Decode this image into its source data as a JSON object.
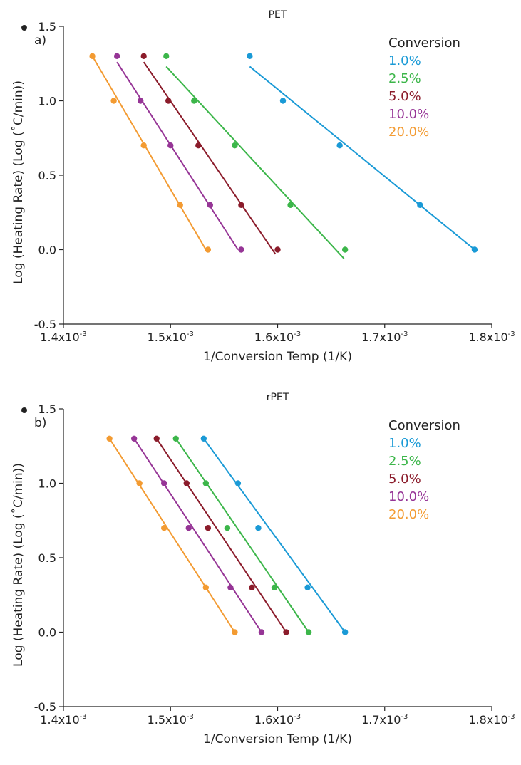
{
  "chart_data": [
    {
      "type": "scatter",
      "panel_label": "a)",
      "title": "PET",
      "xlabel": "1/Conversion Temp (1/K)",
      "ylabel": "Log (Heating Rate)  (Log (˚C/min))",
      "xlim": [
        0.0014,
        0.0018
      ],
      "ylim": [
        -0.5,
        1.5
      ],
      "x_ticks": [
        {
          "value": 0.0014,
          "mantissa": "1.4x10",
          "exp": "-3"
        },
        {
          "value": 0.0015,
          "mantissa": "1.5x10",
          "exp": "-3"
        },
        {
          "value": 0.0016,
          "mantissa": "1.6x10",
          "exp": "-3"
        },
        {
          "value": 0.0017,
          "mantissa": "1.7x10",
          "exp": "-3"
        },
        {
          "value": 0.0018,
          "mantissa": "1.8x10",
          "exp": "-3"
        }
      ],
      "y_ticks": [
        {
          "value": -0.5,
          "label": "-0.5"
        },
        {
          "value": 0.0,
          "label": "0.0"
        },
        {
          "value": 0.5,
          "label": "0.5"
        },
        {
          "value": 1.0,
          "label": "1.0"
        },
        {
          "value": 1.5,
          "label": "1.5"
        }
      ],
      "grid": false,
      "legend": {
        "title": "Conversion",
        "position": "top-right"
      },
      "series": [
        {
          "name": "1.0%",
          "color": "#1a9ad6",
          "points": [
            [
              0.001574,
              1.3
            ],
            [
              0.001605,
              1.0
            ],
            [
              0.001658,
              0.7
            ],
            [
              0.001733,
              0.3
            ],
            [
              0.001784,
              0.0
            ]
          ],
          "fit": [
            [
              0.001574,
              1.23
            ],
            [
              0.001784,
              0.0
            ]
          ]
        },
        {
          "name": "2.5%",
          "color": "#3cb64a",
          "points": [
            [
              0.001496,
              1.3
            ],
            [
              0.001522,
              1.0
            ],
            [
              0.00156,
              0.7
            ],
            [
              0.001612,
              0.3
            ],
            [
              0.001663,
              0.0
            ]
          ],
          "fit": [
            [
              0.001496,
              1.23
            ],
            [
              0.001662,
              -0.06
            ]
          ]
        },
        {
          "name": "5.0%",
          "color": "#8b1c2b",
          "points": [
            [
              0.001475,
              1.3
            ],
            [
              0.001498,
              1.0
            ],
            [
              0.001526,
              0.7
            ],
            [
              0.001566,
              0.3
            ],
            [
              0.0016,
              0.0
            ]
          ],
          "fit": [
            [
              0.001475,
              1.26
            ],
            [
              0.001598,
              -0.03
            ]
          ]
        },
        {
          "name": "10.0%",
          "color": "#963596",
          "points": [
            [
              0.00145,
              1.3
            ],
            [
              0.001472,
              1.0
            ],
            [
              0.0015,
              0.7
            ],
            [
              0.001537,
              0.3
            ],
            [
              0.001566,
              0.0
            ]
          ],
          "fit": [
            [
              0.00145,
              1.26
            ],
            [
              0.001563,
              0.0
            ]
          ]
        },
        {
          "name": "20.0%",
          "color": "#f39b32",
          "points": [
            [
              0.001427,
              1.3
            ],
            [
              0.001447,
              1.0
            ],
            [
              0.001475,
              0.7
            ],
            [
              0.001509,
              0.3
            ],
            [
              0.001535,
              0.0
            ]
          ],
          "fit": [
            [
              0.001427,
              1.3
            ],
            [
              0.001533,
              0.0
            ]
          ]
        }
      ]
    },
    {
      "type": "scatter",
      "panel_label": "b)",
      "title": "rPET",
      "xlabel": "1/Conversion Temp (1/K)",
      "ylabel": "Log (Heating Rate)  (Log (˚C/min))",
      "xlim": [
        0.0014,
        0.0018
      ],
      "ylim": [
        -0.5,
        1.5
      ],
      "x_ticks": [
        {
          "value": 0.0014,
          "mantissa": "1.4x10",
          "exp": "-3"
        },
        {
          "value": 0.0015,
          "mantissa": "1.5x10",
          "exp": "-3"
        },
        {
          "value": 0.0016,
          "mantissa": "1.6x10",
          "exp": "-3"
        },
        {
          "value": 0.0017,
          "mantissa": "1.7x10",
          "exp": "-3"
        },
        {
          "value": 0.0018,
          "mantissa": "1.8x10",
          "exp": "-3"
        }
      ],
      "y_ticks": [
        {
          "value": -0.5,
          "label": "-0.5"
        },
        {
          "value": 0.0,
          "label": "0.0"
        },
        {
          "value": 0.5,
          "label": "0.5"
        },
        {
          "value": 1.0,
          "label": "1.0"
        },
        {
          "value": 1.5,
          "label": "1.5"
        }
      ],
      "grid": false,
      "legend": {
        "title": "Conversion",
        "position": "top-right"
      },
      "series": [
        {
          "name": "1.0%",
          "color": "#1a9ad6",
          "points": [
            [
              0.001531,
              1.3
            ],
            [
              0.001563,
              1.0
            ],
            [
              0.001582,
              0.7
            ],
            [
              0.001628,
              0.3
            ],
            [
              0.001663,
              0.0
            ]
          ],
          "fit": [
            [
              0.001531,
              1.3
            ],
            [
              0.001663,
              0.0
            ]
          ]
        },
        {
          "name": "2.5%",
          "color": "#3cb64a",
          "points": [
            [
              0.001505,
              1.3
            ],
            [
              0.001533,
              1.0
            ],
            [
              0.001553,
              0.7
            ],
            [
              0.001597,
              0.3
            ],
            [
              0.001629,
              0.0
            ]
          ],
          "fit": [
            [
              0.001505,
              1.3
            ],
            [
              0.001629,
              0.0
            ]
          ]
        },
        {
          "name": "5.0%",
          "color": "#8b1c2b",
          "points": [
            [
              0.001487,
              1.3
            ],
            [
              0.001515,
              1.0
            ],
            [
              0.001535,
              0.7
            ],
            [
              0.001576,
              0.3
            ],
            [
              0.001608,
              0.0
            ]
          ],
          "fit": [
            [
              0.001487,
              1.3
            ],
            [
              0.001608,
              0.0
            ]
          ]
        },
        {
          "name": "10.0%",
          "color": "#963596",
          "points": [
            [
              0.001466,
              1.3
            ],
            [
              0.001494,
              1.0
            ],
            [
              0.001517,
              0.7
            ],
            [
              0.001556,
              0.3
            ],
            [
              0.001585,
              0.0
            ]
          ],
          "fit": [
            [
              0.001466,
              1.3
            ],
            [
              0.001585,
              0.0
            ]
          ]
        },
        {
          "name": "20.0%",
          "color": "#f39b32",
          "points": [
            [
              0.001443,
              1.3
            ],
            [
              0.001471,
              1.0
            ],
            [
              0.001494,
              0.7
            ],
            [
              0.001533,
              0.3
            ],
            [
              0.00156,
              0.0
            ]
          ],
          "fit": [
            [
              0.001443,
              1.3
            ],
            [
              0.00156,
              0.0
            ]
          ]
        }
      ]
    }
  ]
}
